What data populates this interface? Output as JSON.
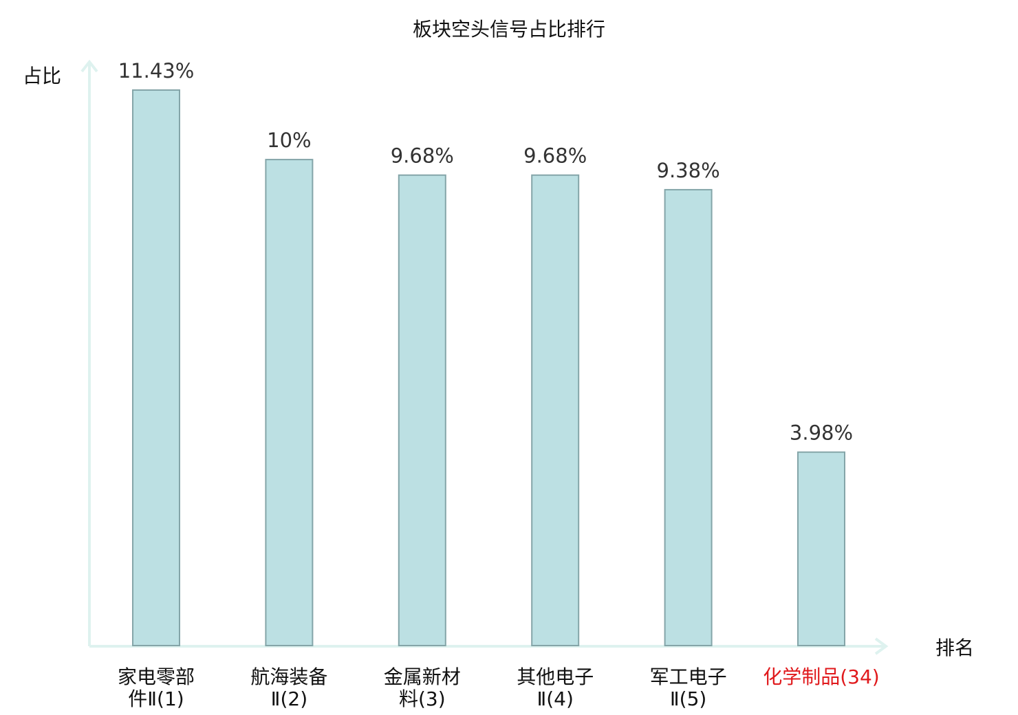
{
  "chart_data": {
    "type": "bar",
    "title": "板块空头信号占比排行",
    "ylabel": "占比",
    "xlabel": "排名",
    "ylim": [
      0,
      12.6
    ],
    "grid": false,
    "categories": [
      [
        "家电零部",
        "件Ⅱ(1)"
      ],
      [
        "航海装备",
        "Ⅱ(2)"
      ],
      [
        "金属新材",
        "料(3)"
      ],
      [
        "其他电子",
        "Ⅱ(4)"
      ],
      [
        "军工电子",
        "Ⅱ(5)"
      ],
      [
        "化学制品(34)"
      ]
    ],
    "values": [
      11.43,
      10.0,
      9.68,
      9.68,
      9.38,
      3.98
    ],
    "value_labels": [
      "11.43%",
      "10%",
      "9.68%",
      "9.68%",
      "9.38%",
      "3.98%"
    ],
    "highlight_index": 5,
    "colors": {
      "bar_fill": "#bce0e3",
      "bar_stroke": "#84a5a8",
      "axis": "#def2ef",
      "highlight_text": "#e0191c",
      "text": "#111111"
    }
  }
}
